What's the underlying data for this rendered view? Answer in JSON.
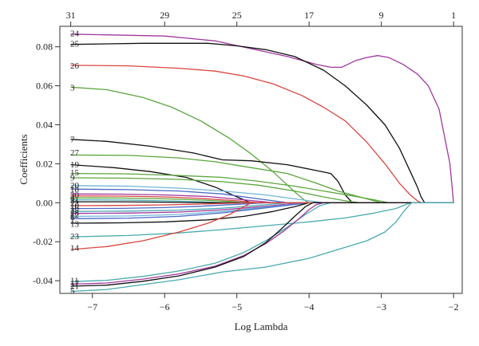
{
  "chart_data": {
    "type": "line",
    "title": "",
    "xlabel": "Log Lambda",
    "ylabel": "Coefficients",
    "xlim": [
      -7.45,
      -1.88
    ],
    "ylim": [
      -0.0465,
      0.0905
    ],
    "grid": false,
    "legend": "none",
    "x_ticks": [
      -7,
      -6,
      -5,
      -4,
      -3,
      -2
    ],
    "x_tick_labels": [
      "−7",
      "−6",
      "−5",
      "−4",
      "−3",
      "−2"
    ],
    "y_ticks": [
      -0.04,
      -0.02,
      0.0,
      0.02,
      0.04,
      0.06,
      0.08
    ],
    "y_tick_labels": [
      "-0.04",
      "-0.02",
      "0.00",
      "0.02",
      "0.04",
      "0.06",
      "0.08"
    ],
    "top_axis": {
      "ticks": [
        -7.3,
        -6.0,
        -5.0,
        -4.0,
        -3.0,
        -2.0
      ],
      "labels": [
        "31",
        "29",
        "25",
        "17",
        "9",
        "1"
      ]
    },
    "series": [
      {
        "label": "24",
        "color": "#a2379f",
        "x": [
          -7.3,
          -6.0,
          -5.3,
          -4.8,
          -4.3,
          -3.9,
          -3.7,
          -3.55,
          -3.35,
          -3.2,
          -3.05,
          -2.9,
          -2.7,
          -2.5,
          -2.35,
          -2.2,
          -2.05,
          -2.0
        ],
        "y": [
          0.0865,
          0.0855,
          0.083,
          0.079,
          0.075,
          0.071,
          0.0695,
          0.0695,
          0.073,
          0.0745,
          0.0755,
          0.0745,
          0.071,
          0.066,
          0.06,
          0.048,
          0.02,
          0.0
        ]
      },
      {
        "label": "25",
        "color": "#111111",
        "x": [
          -7.3,
          -6.8,
          -6.3,
          -5.8,
          -5.4,
          -5.0,
          -4.6,
          -4.2,
          -3.8,
          -3.5,
          -3.2,
          -2.95,
          -2.75,
          -2.6,
          -2.5,
          -2.45,
          -2.4
        ],
        "y": [
          0.0812,
          0.0815,
          0.0818,
          0.0818,
          0.0818,
          0.0805,
          0.0785,
          0.075,
          0.068,
          0.06,
          0.05,
          0.04,
          0.028,
          0.016,
          0.008,
          0.003,
          0.0
        ]
      },
      {
        "label": "26",
        "color": "#d9463f",
        "x": [
          -7.3,
          -6.5,
          -5.8,
          -5.3,
          -4.9,
          -4.5,
          -4.1,
          -3.8,
          -3.5,
          -3.2,
          -2.95,
          -2.75,
          -2.6,
          -2.5,
          -2.45
        ],
        "y": [
          0.0705,
          0.0702,
          0.069,
          0.0675,
          0.065,
          0.061,
          0.055,
          0.049,
          0.042,
          0.031,
          0.02,
          0.01,
          0.004,
          0.001,
          0.0
        ]
      },
      {
        "label": "3",
        "color": "#5aa63d",
        "x": [
          -7.3,
          -6.8,
          -6.3,
          -5.9,
          -5.5,
          -5.1,
          -4.8,
          -4.5,
          -4.3,
          -4.15,
          -4.05,
          -4.0
        ],
        "y": [
          0.0593,
          0.058,
          0.054,
          0.049,
          0.042,
          0.033,
          0.025,
          0.016,
          0.009,
          0.004,
          0.001,
          0.0
        ]
      },
      {
        "label": "7",
        "color": "#111111",
        "x": [
          -7.3,
          -6.8,
          -6.2,
          -5.6,
          -5.2,
          -4.8,
          -4.3,
          -3.9,
          -3.7,
          -3.6,
          -3.5,
          -3.4
        ],
        "y": [
          0.0325,
          0.0315,
          0.029,
          0.0255,
          0.022,
          0.0215,
          0.0195,
          0.0165,
          0.015,
          0.011,
          0.004,
          0.0
        ]
      },
      {
        "label": "27",
        "color": "#5aa63d",
        "x": [
          -7.3,
          -6.5,
          -5.8,
          -5.3,
          -4.8,
          -4.3,
          -3.9,
          -3.6,
          -3.3,
          -3.1,
          -3.0
        ],
        "y": [
          0.0245,
          0.0243,
          0.023,
          0.021,
          0.018,
          0.015,
          0.01,
          0.006,
          0.003,
          0.001,
          0.0
        ]
      },
      {
        "label": "19",
        "color": "#111111",
        "x": [
          -7.3,
          -6.7,
          -6.2,
          -5.7,
          -5.3,
          -5.0,
          -4.8
        ],
        "y": [
          0.0195,
          0.018,
          0.016,
          0.013,
          0.008,
          0.003,
          0.0
        ]
      },
      {
        "label": "15",
        "color": "#5aa63d",
        "x": [
          -7.3,
          -6.5,
          -5.8,
          -5.2,
          -4.7,
          -4.2,
          -3.8,
          -3.4,
          -3.1,
          -2.9
        ],
        "y": [
          0.015,
          0.0148,
          0.014,
          0.013,
          0.011,
          0.0085,
          0.006,
          0.0035,
          0.0015,
          0.0
        ]
      },
      {
        "label": "9",
        "color": "#5aa63d",
        "x": [
          -7.3,
          -6.5,
          -5.8,
          -5.2,
          -4.7,
          -4.2,
          -3.8,
          -3.5,
          -3.3
        ],
        "y": [
          0.0128,
          0.0126,
          0.012,
          0.0108,
          0.009,
          0.006,
          0.003,
          0.001,
          0.0
        ]
      },
      {
        "label": "20",
        "color": "#6fb6d6",
        "x": [
          -7.3,
          -6.5,
          -5.8,
          -5.2,
          -4.6,
          -4.1,
          -3.8
        ],
        "y": [
          0.0088,
          0.0085,
          0.0075,
          0.006,
          0.004,
          0.0015,
          0.0
        ]
      },
      {
        "label": "18",
        "color": "#4a69c9",
        "x": [
          -7.3,
          -6.5,
          -5.8,
          -5.2,
          -4.7,
          -4.3
        ],
        "y": [
          0.007,
          0.0067,
          0.006,
          0.0045,
          0.002,
          0.0
        ]
      },
      {
        "label": "30",
        "color": "#a2379f",
        "x": [
          -7.3,
          -6.6,
          -6.0,
          -5.4,
          -4.9,
          -4.5
        ],
        "y": [
          0.0045,
          0.0044,
          0.004,
          0.0032,
          0.0015,
          0.0
        ]
      },
      {
        "label": "4",
        "color": "#d9463f",
        "x": [
          -7.3,
          -6.6,
          -6.0,
          -5.5,
          -5.0,
          -4.7
        ],
        "y": [
          0.0035,
          0.0034,
          0.003,
          0.0022,
          0.001,
          0.0
        ]
      },
      {
        "label": "31",
        "color": "#5aa63d",
        "x": [
          -7.3,
          -6.6,
          -6.0,
          -5.5,
          -5.1,
          -4.9
        ],
        "y": [
          0.0025,
          0.0024,
          0.002,
          0.0014,
          0.0006,
          0.0
        ]
      },
      {
        "label": "22",
        "color": "#49aab0",
        "x": [
          -7.3,
          -6.6,
          -6.0,
          -5.5,
          -5.2
        ],
        "y": [
          0.0015,
          0.0014,
          0.001,
          0.0005,
          0.0
        ]
      },
      {
        "label": "10",
        "color": "#111111",
        "x": [
          -7.3,
          -6.6,
          -6.0,
          -5.6,
          -5.3
        ],
        "y": [
          0.0005,
          0.0005,
          0.0003,
          0.0001,
          0.0
        ]
      },
      {
        "label": "16",
        "color": "#d9463f",
        "x": [
          -7.3,
          -6.6,
          -6.0,
          -5.5,
          -5.1,
          -4.8
        ],
        "y": [
          -0.0015,
          -0.0014,
          -0.0011,
          -0.0007,
          -0.0003,
          0.0
        ]
      },
      {
        "label": "2",
        "color": "#4a69c9",
        "x": [
          -7.3,
          -6.6,
          -6.0,
          -5.5,
          -5.0,
          -4.6
        ],
        "y": [
          -0.003,
          -0.0029,
          -0.0025,
          -0.0018,
          -0.0008,
          0.0
        ]
      },
      {
        "label": "28",
        "color": "#49aab0",
        "x": [
          -7.3,
          -6.5,
          -5.8,
          -5.2,
          -4.7,
          -4.3
        ],
        "y": [
          -0.0045,
          -0.0043,
          -0.0038,
          -0.0028,
          -0.0013,
          0.0
        ]
      },
      {
        "label": "12",
        "color": "#a2379f",
        "x": [
          -7.3,
          -6.5,
          -5.8,
          -5.2,
          -4.6,
          -4.1
        ],
        "y": [
          -0.0055,
          -0.0053,
          -0.0048,
          -0.0036,
          -0.0018,
          0.0
        ]
      },
      {
        "label": "6",
        "color": "#6fb6d6",
        "x": [
          -7.3,
          -6.5,
          -5.8,
          -5.2,
          -4.6,
          -4.0
        ],
        "y": [
          -0.007,
          -0.0068,
          -0.006,
          -0.0045,
          -0.0022,
          0.0
        ]
      },
      {
        "label": "1",
        "color": "#4a69c9",
        "x": [
          -7.3,
          -6.5,
          -5.8,
          -5.2,
          -4.6,
          -4.0
        ],
        "y": [
          -0.0082,
          -0.0079,
          -0.007,
          -0.0052,
          -0.0026,
          0.0
        ]
      },
      {
        "label": "13",
        "color": "#111111",
        "x": [
          -7.3,
          -6.6,
          -6.0,
          -5.4,
          -4.9,
          -4.5,
          -4.2,
          -4.0
        ],
        "y": [
          -0.0105,
          -0.0103,
          -0.0098,
          -0.0088,
          -0.007,
          -0.0045,
          -0.002,
          0.0
        ]
      },
      {
        "label": "23",
        "color": "#49aab0",
        "x": [
          -7.3,
          -6.5,
          -5.8,
          -5.2,
          -4.6,
          -4.0,
          -3.5,
          -3.1,
          -2.8,
          -2.7,
          -2.6
        ],
        "y": [
          -0.0175,
          -0.0168,
          -0.0155,
          -0.0138,
          -0.0118,
          -0.0098,
          -0.0078,
          -0.0053,
          -0.003,
          -0.0015,
          0.0
        ]
      },
      {
        "label": "14",
        "color": "#d9463f",
        "x": [
          -7.3,
          -6.8,
          -6.3,
          -5.8,
          -5.4,
          -5.1,
          -4.9,
          -4.8
        ],
        "y": [
          -0.024,
          -0.0225,
          -0.0195,
          -0.015,
          -0.0105,
          -0.006,
          -0.002,
          0.0
        ]
      },
      {
        "label": "11",
        "color": "#49aab0",
        "x": [
          -7.3,
          -6.8,
          -6.3,
          -5.8,
          -5.3,
          -4.9,
          -4.6,
          -4.3,
          -4.05,
          -3.85,
          -3.7
        ],
        "y": [
          -0.0405,
          -0.0398,
          -0.0378,
          -0.035,
          -0.031,
          -0.0255,
          -0.0195,
          -0.0125,
          -0.006,
          -0.0015,
          0.0
        ]
      },
      {
        "label": "17",
        "color": "#a2379f",
        "x": [
          -7.3,
          -6.8,
          -6.3,
          -5.8,
          -5.3,
          -4.9,
          -4.6,
          -4.35,
          -4.15,
          -4.0,
          -3.9,
          -3.8
        ],
        "y": [
          -0.0418,
          -0.0412,
          -0.0392,
          -0.0365,
          -0.0325,
          -0.027,
          -0.021,
          -0.0145,
          -0.0085,
          -0.0035,
          -0.001,
          0.0
        ]
      },
      {
        "label": "21",
        "color": "#111111",
        "x": [
          -7.3,
          -6.8,
          -6.3,
          -5.8,
          -5.3,
          -4.9,
          -4.6,
          -4.4,
          -4.2,
          -4.05,
          -3.95
        ],
        "y": [
          -0.0428,
          -0.0423,
          -0.0403,
          -0.0375,
          -0.033,
          -0.0275,
          -0.0205,
          -0.014,
          -0.007,
          -0.002,
          0.0
        ]
      },
      {
        "label": "5",
        "color": "#49aab0",
        "x": [
          -7.3,
          -6.8,
          -6.3,
          -5.8,
          -5.2,
          -4.6,
          -4.0,
          -3.6,
          -3.2,
          -2.95,
          -2.8,
          -2.7,
          -2.62,
          -2.58
        ],
        "y": [
          -0.0455,
          -0.0445,
          -0.042,
          -0.0395,
          -0.0355,
          -0.033,
          -0.0285,
          -0.024,
          -0.0195,
          -0.015,
          -0.01,
          -0.005,
          -0.0015,
          0.0
        ]
      }
    ],
    "label_positions": [
      {
        "label": "24",
        "y": 0.0871
      },
      {
        "label": "25",
        "y": 0.0817
      },
      {
        "label": "26",
        "y": 0.0705
      },
      {
        "label": "3",
        "y": 0.0593
      },
      {
        "label": "7",
        "y": 0.0327
      },
      {
        "label": "27",
        "y": 0.0259
      },
      {
        "label": "19",
        "y": 0.0197
      },
      {
        "label": "15",
        "y": 0.0157
      },
      {
        "label": "9",
        "y": 0.013
      },
      {
        "label": "20",
        "y": 0.0092
      },
      {
        "label": "18",
        "y": 0.007
      },
      {
        "label": "30",
        "y": 0.0042
      },
      {
        "label": "4",
        "y": 0.0028
      },
      {
        "label": "31",
        "y": 0.0013
      },
      {
        "label": "22",
        "y": -0.0001
      },
      {
        "label": "10",
        "y": -0.0014
      },
      {
        "label": "16",
        "y": -0.0026
      },
      {
        "label": "2",
        "y": -0.0038
      },
      {
        "label": "28",
        "y": -0.0049
      },
      {
        "label": "12",
        "y": -0.0061
      },
      {
        "label": "6",
        "y": -0.0073
      },
      {
        "label": "1",
        "y": -0.0085
      },
      {
        "label": "13",
        "y": -0.0107
      },
      {
        "label": "23",
        "y": -0.017
      },
      {
        "label": "14",
        "y": -0.023
      },
      {
        "label": "11",
        "y": -0.0398
      },
      {
        "label": "17",
        "y": -0.0412
      },
      {
        "label": "21",
        "y": -0.0426
      },
      {
        "label": "5",
        "y": -0.0448
      }
    ]
  }
}
